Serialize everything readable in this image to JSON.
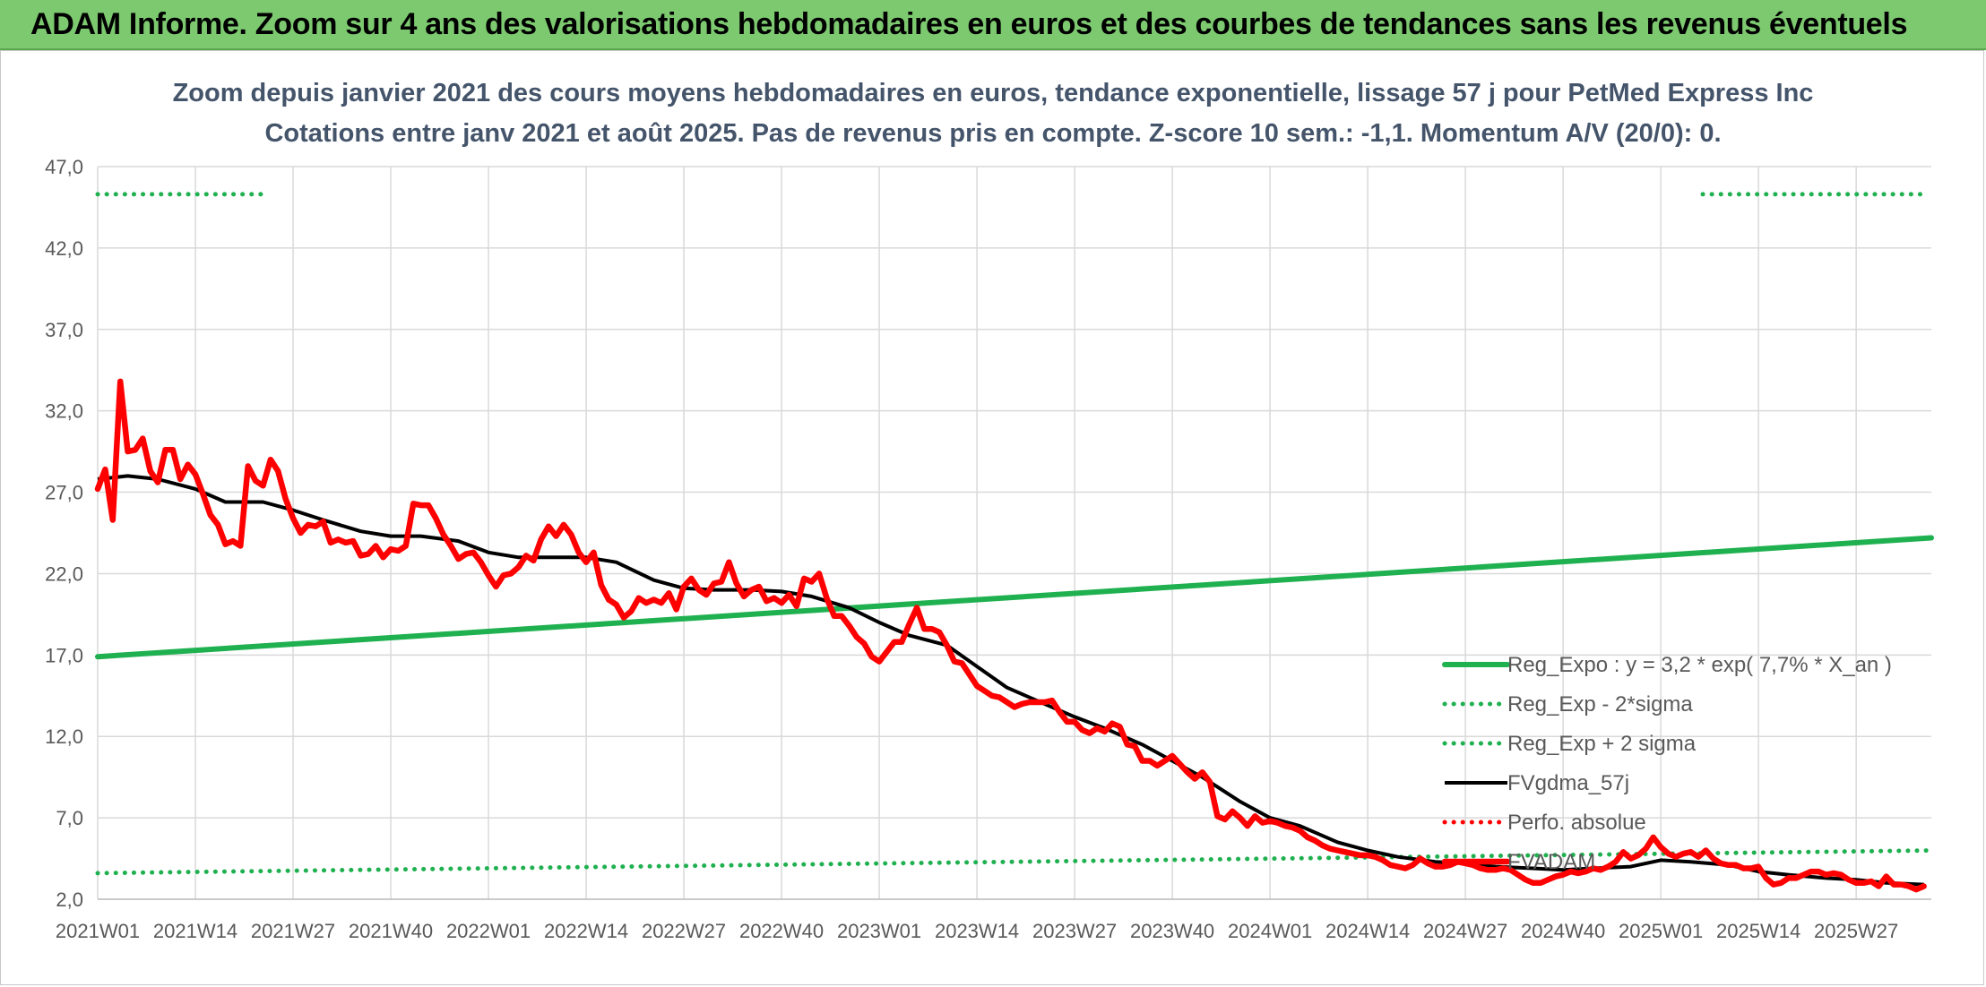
{
  "header": {
    "title": "ADAM Informe. Zoom sur 4 ans des valorisations hebdomadaires en euros et des courbes de tendances sans les revenus éventuels"
  },
  "colors": {
    "header_bg": "#7dc96f",
    "reg_expo": "#1fb050",
    "fvgdma": "#000000",
    "fvadam": "#ff0000",
    "perfo": "#ff0000"
  },
  "chart_data": {
    "type": "line",
    "title": "Zoom depuis janvier 2021 des cours moyens hebdomadaires en euros, tendance exponentielle, lissage 57 j pour PetMed Express Inc",
    "subtitle": "Cotations entre janv 2021 et août 2025. Pas de revenus pris en compte. Z-score 10 sem.: -1,1. Momentum A/V (20/0): 0.",
    "xlabel": "",
    "ylabel": "",
    "ylim": [
      2.0,
      47.0
    ],
    "yticks": [
      "47,0",
      "42,0",
      "37,0",
      "32,0",
      "27,0",
      "22,0",
      "17,0",
      "12,0",
      "7,0",
      "2,0"
    ],
    "xtick_labels": [
      "2021W01",
      "2021W14",
      "2021W27",
      "2021W40",
      "2022W01",
      "2022W14",
      "2022W27",
      "2022W40",
      "2023W01",
      "2023W14",
      "2023W27",
      "2023W40",
      "2024W01",
      "2024W14",
      "2024W27",
      "2024W40",
      "2025W01",
      "2025W14",
      "2025W27"
    ],
    "grid": true,
    "legend_position": "bottom-right",
    "series": [
      {
        "name": "Reg_Expo : y = 3,2 * exp( 7,7% *  X_an )",
        "style": "solid-thick",
        "color": "#1fb050",
        "points": [
          [
            0,
            16.9
          ],
          [
            244,
            24.2
          ]
        ]
      },
      {
        "name": "Reg_Exp - 2*sigma",
        "style": "dotted",
        "color": "#1fb050",
        "points": [
          [
            0,
            3.6
          ],
          [
            244,
            5.0
          ]
        ]
      },
      {
        "name": "Reg_Exp + 2 sigma",
        "style": "dotted",
        "color": "#1fb050",
        "points": [
          [
            0,
            45.3
          ],
          [
            22,
            45.3
          ]
        ]
      },
      {
        "name": "FVgdma_57j",
        "style": "solid",
        "color": "#000000",
        "points": [
          [
            0,
            27.8
          ],
          [
            4,
            28.0
          ],
          [
            8,
            27.8
          ],
          [
            13,
            27.2
          ],
          [
            17,
            26.4
          ],
          [
            22,
            26.4
          ],
          [
            26,
            25.9
          ],
          [
            30,
            25.3
          ],
          [
            35,
            24.6
          ],
          [
            39,
            24.3
          ],
          [
            43,
            24.3
          ],
          [
            48,
            24.0
          ],
          [
            52,
            23.3
          ],
          [
            56,
            23.0
          ],
          [
            61,
            23.0
          ],
          [
            65,
            23.0
          ],
          [
            69,
            22.7
          ],
          [
            74,
            21.6
          ],
          [
            78,
            21.1
          ],
          [
            82,
            21.0
          ],
          [
            87,
            21.0
          ],
          [
            91,
            20.9
          ],
          [
            95,
            20.6
          ],
          [
            100,
            19.9
          ],
          [
            104,
            19.0
          ],
          [
            108,
            18.2
          ],
          [
            113,
            17.6
          ],
          [
            117,
            16.3
          ],
          [
            121,
            15.0
          ],
          [
            126,
            14.0
          ],
          [
            130,
            13.2
          ],
          [
            134,
            12.5
          ],
          [
            139,
            11.5
          ],
          [
            143,
            10.5
          ],
          [
            147,
            9.5
          ],
          [
            152,
            8.0
          ],
          [
            156,
            7.0
          ],
          [
            160,
            6.5
          ],
          [
            165,
            5.5
          ],
          [
            169,
            5.0
          ],
          [
            173,
            4.6
          ],
          [
            178,
            4.3
          ],
          [
            182,
            4.2
          ],
          [
            186,
            4.0
          ],
          [
            191,
            3.9
          ],
          [
            195,
            3.8
          ],
          [
            199,
            3.9
          ],
          [
            204,
            4.0
          ],
          [
            208,
            4.4
          ],
          [
            212,
            4.3
          ],
          [
            217,
            4.1
          ],
          [
            221,
            3.7
          ],
          [
            225,
            3.5
          ],
          [
            230,
            3.3
          ],
          [
            234,
            3.2
          ],
          [
            238,
            3.0
          ],
          [
            243,
            2.9
          ]
        ]
      },
      {
        "name": "Perfo. absolue",
        "style": "dotted",
        "color": "#ff0000",
        "points": []
      },
      {
        "name": "FVADAM",
        "style": "solid-thick",
        "color": "#ff0000",
        "points": [
          [
            0,
            27.2
          ],
          [
            1,
            28.4
          ],
          [
            2,
            25.3
          ],
          [
            3,
            33.8
          ],
          [
            4,
            29.5
          ],
          [
            5,
            29.6
          ],
          [
            6,
            30.3
          ],
          [
            7,
            28.3
          ],
          [
            8,
            27.6
          ],
          [
            9,
            29.6
          ],
          [
            10,
            29.6
          ],
          [
            11,
            27.8
          ],
          [
            12,
            28.7
          ],
          [
            13,
            28.1
          ],
          [
            14,
            26.9
          ],
          [
            15,
            25.6
          ],
          [
            16,
            25.0
          ],
          [
            17,
            23.8
          ],
          [
            18,
            24.0
          ],
          [
            19,
            23.7
          ],
          [
            20,
            28.6
          ],
          [
            21,
            27.7
          ],
          [
            22,
            27.4
          ],
          [
            23,
            29.0
          ],
          [
            24,
            28.3
          ],
          [
            25,
            26.6
          ],
          [
            26,
            25.4
          ],
          [
            27,
            24.5
          ],
          [
            28,
            25.0
          ],
          [
            29,
            24.9
          ],
          [
            30,
            25.2
          ],
          [
            31,
            23.9
          ],
          [
            32,
            24.1
          ],
          [
            33,
            23.9
          ],
          [
            34,
            24.0
          ],
          [
            35,
            23.1
          ],
          [
            36,
            23.2
          ],
          [
            37,
            23.7
          ],
          [
            38,
            23.0
          ],
          [
            39,
            23.5
          ],
          [
            40,
            23.4
          ],
          [
            41,
            23.7
          ],
          [
            42,
            26.3
          ],
          [
            43,
            26.2
          ],
          [
            44,
            26.2
          ],
          [
            45,
            25.4
          ],
          [
            46,
            24.4
          ],
          [
            47,
            23.7
          ],
          [
            48,
            22.9
          ],
          [
            49,
            23.2
          ],
          [
            50,
            23.3
          ],
          [
            51,
            22.7
          ],
          [
            52,
            21.9
          ],
          [
            53,
            21.2
          ],
          [
            54,
            21.9
          ],
          [
            55,
            22.0
          ],
          [
            56,
            22.4
          ],
          [
            57,
            23.1
          ],
          [
            58,
            22.8
          ],
          [
            59,
            24.1
          ],
          [
            60,
            24.9
          ],
          [
            61,
            24.3
          ],
          [
            62,
            25.0
          ],
          [
            63,
            24.4
          ],
          [
            64,
            23.3
          ],
          [
            65,
            22.7
          ],
          [
            66,
            23.3
          ],
          [
            67,
            21.3
          ],
          [
            68,
            20.4
          ],
          [
            69,
            20.1
          ],
          [
            70,
            19.3
          ],
          [
            71,
            19.7
          ],
          [
            72,
            20.5
          ],
          [
            73,
            20.2
          ],
          [
            74,
            20.4
          ],
          [
            75,
            20.2
          ],
          [
            76,
            20.8
          ],
          [
            77,
            19.8
          ],
          [
            78,
            21.2
          ],
          [
            79,
            21.7
          ],
          [
            80,
            21.0
          ],
          [
            81,
            20.7
          ],
          [
            82,
            21.4
          ],
          [
            83,
            21.5
          ],
          [
            84,
            22.7
          ],
          [
            85,
            21.4
          ],
          [
            86,
            20.6
          ],
          [
            87,
            21.0
          ],
          [
            88,
            21.2
          ],
          [
            89,
            20.3
          ],
          [
            90,
            20.5
          ],
          [
            91,
            20.2
          ],
          [
            92,
            20.7
          ],
          [
            93,
            20.0
          ],
          [
            94,
            21.7
          ],
          [
            95,
            21.5
          ],
          [
            96,
            22.0
          ],
          [
            97,
            20.5
          ],
          [
            98,
            19.4
          ],
          [
            99,
            19.4
          ],
          [
            100,
            18.8
          ],
          [
            101,
            18.1
          ],
          [
            102,
            17.7
          ],
          [
            103,
            16.9
          ],
          [
            104,
            16.6
          ],
          [
            105,
            17.2
          ],
          [
            106,
            17.8
          ],
          [
            107,
            17.8
          ],
          [
            108,
            18.9
          ],
          [
            109,
            19.9
          ],
          [
            110,
            18.6
          ],
          [
            111,
            18.6
          ],
          [
            112,
            18.4
          ],
          [
            113,
            17.6
          ],
          [
            114,
            16.6
          ],
          [
            115,
            16.5
          ],
          [
            116,
            15.8
          ],
          [
            117,
            15.1
          ],
          [
            118,
            14.8
          ],
          [
            119,
            14.5
          ],
          [
            120,
            14.4
          ],
          [
            121,
            14.1
          ],
          [
            122,
            13.8
          ],
          [
            123,
            14.0
          ],
          [
            124,
            14.1
          ],
          [
            125,
            14.1
          ],
          [
            126,
            14.1
          ],
          [
            127,
            14.2
          ],
          [
            128,
            13.5
          ],
          [
            129,
            12.9
          ],
          [
            130,
            12.9
          ],
          [
            131,
            12.4
          ],
          [
            132,
            12.2
          ],
          [
            133,
            12.5
          ],
          [
            134,
            12.3
          ],
          [
            135,
            12.8
          ],
          [
            136,
            12.6
          ],
          [
            137,
            11.5
          ],
          [
            138,
            11.4
          ],
          [
            139,
            10.5
          ],
          [
            140,
            10.5
          ],
          [
            141,
            10.2
          ],
          [
            142,
            10.5
          ],
          [
            143,
            10.8
          ],
          [
            144,
            10.3
          ],
          [
            145,
            9.8
          ],
          [
            146,
            9.4
          ],
          [
            147,
            9.8
          ],
          [
            148,
            9.2
          ],
          [
            149,
            7.1
          ],
          [
            150,
            6.9
          ],
          [
            151,
            7.4
          ],
          [
            152,
            7.0
          ],
          [
            153,
            6.5
          ],
          [
            154,
            7.1
          ],
          [
            155,
            6.7
          ],
          [
            156,
            6.8
          ],
          [
            157,
            6.7
          ],
          [
            158,
            6.5
          ],
          [
            159,
            6.4
          ],
          [
            160,
            6.2
          ],
          [
            161,
            5.8
          ],
          [
            162,
            5.6
          ],
          [
            163,
            5.3
          ],
          [
            164,
            5.1
          ],
          [
            165,
            5.0
          ],
          [
            166,
            4.9
          ],
          [
            167,
            4.8
          ],
          [
            168,
            4.7
          ],
          [
            169,
            4.7
          ],
          [
            170,
            4.6
          ],
          [
            171,
            4.4
          ],
          [
            172,
            4.1
          ],
          [
            173,
            4.0
          ],
          [
            174,
            3.9
          ],
          [
            175,
            4.1
          ],
          [
            176,
            4.5
          ],
          [
            177,
            4.2
          ],
          [
            178,
            4.0
          ],
          [
            179,
            4.0
          ],
          [
            180,
            4.1
          ],
          [
            181,
            4.3
          ],
          [
            182,
            4.2
          ],
          [
            183,
            4.1
          ],
          [
            184,
            3.9
          ],
          [
            185,
            3.8
          ],
          [
            186,
            3.8
          ],
          [
            187,
            3.9
          ],
          [
            188,
            3.8
          ],
          [
            189,
            3.5
          ],
          [
            190,
            3.2
          ],
          [
            191,
            3.0
          ],
          [
            192,
            3.0
          ],
          [
            193,
            3.2
          ],
          [
            194,
            3.4
          ],
          [
            195,
            3.5
          ],
          [
            196,
            3.7
          ],
          [
            197,
            3.6
          ],
          [
            198,
            3.7
          ],
          [
            199,
            3.9
          ],
          [
            200,
            3.8
          ],
          [
            201,
            4.0
          ],
          [
            202,
            4.3
          ],
          [
            203,
            4.9
          ],
          [
            204,
            4.5
          ],
          [
            205,
            4.7
          ],
          [
            206,
            5.1
          ],
          [
            207,
            5.8
          ],
          [
            208,
            5.2
          ],
          [
            209,
            4.8
          ],
          [
            210,
            4.6
          ],
          [
            211,
            4.8
          ],
          [
            212,
            4.9
          ],
          [
            213,
            4.6
          ],
          [
            214,
            5.0
          ],
          [
            215,
            4.5
          ],
          [
            216,
            4.2
          ],
          [
            217,
            4.1
          ],
          [
            218,
            4.1
          ],
          [
            219,
            3.9
          ],
          [
            220,
            3.9
          ],
          [
            221,
            4.0
          ],
          [
            222,
            3.3
          ],
          [
            223,
            2.9
          ],
          [
            224,
            3.0
          ],
          [
            225,
            3.3
          ],
          [
            226,
            3.3
          ],
          [
            227,
            3.5
          ],
          [
            228,
            3.7
          ],
          [
            229,
            3.7
          ],
          [
            230,
            3.5
          ],
          [
            231,
            3.6
          ],
          [
            232,
            3.5
          ],
          [
            233,
            3.2
          ],
          [
            234,
            3.0
          ],
          [
            235,
            3.0
          ],
          [
            236,
            3.1
          ],
          [
            237,
            2.8
          ],
          [
            238,
            3.4
          ],
          [
            239,
            2.9
          ],
          [
            240,
            2.9
          ],
          [
            241,
            2.8
          ],
          [
            242,
            2.6
          ],
          [
            243,
            2.8
          ]
        ]
      }
    ]
  }
}
